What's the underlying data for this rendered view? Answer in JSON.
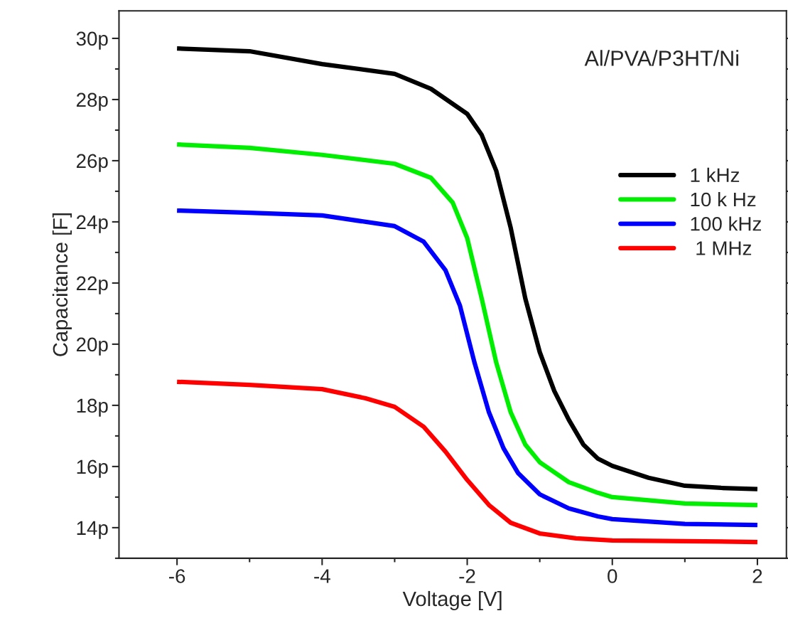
{
  "chart_data": {
    "type": "line",
    "xlabel": "Voltage [V]",
    "ylabel": "Capacitance [F]",
    "annotations": [
      "Al/PVA/P3HT/Ni"
    ],
    "xlim": [
      -6.8,
      2.4
    ],
    "ylim": [
      13,
      30.9
    ],
    "xticks": [
      -6,
      -4,
      -2,
      0,
      2
    ],
    "yticks": [
      {
        "value": 14,
        "label": "14p"
      },
      {
        "value": 16,
        "label": "16p"
      },
      {
        "value": 18,
        "label": "18p"
      },
      {
        "value": 20,
        "label": "20p"
      },
      {
        "value": 22,
        "label": "22p"
      },
      {
        "value": 24,
        "label": "24p"
      },
      {
        "value": 26,
        "label": "26p"
      },
      {
        "value": 28,
        "label": "28p"
      },
      {
        "value": 30,
        "label": "30p"
      }
    ],
    "grid": false,
    "legend": "right",
    "line_style": "solid",
    "marker": "none",
    "series": [
      {
        "name": "1 kHz",
        "color": "#000000",
        "x": [
          -6,
          -5,
          -4,
          -3,
          -2.5,
          -2,
          -1.8,
          -1.6,
          -1.4,
          -1.2,
          -1.0,
          -0.8,
          -0.6,
          -0.4,
          -0.2,
          0,
          0.5,
          1,
          1.5,
          2
        ],
        "values": [
          29.67,
          29.58,
          29.16,
          28.84,
          28.35,
          27.53,
          26.84,
          25.67,
          23.8,
          21.5,
          19.74,
          18.47,
          17.53,
          16.72,
          16.26,
          16.02,
          15.63,
          15.37,
          15.3,
          15.26
        ]
      },
      {
        "name": "10 k Hz",
        "color": "#00ee00",
        "x": [
          -6,
          -5,
          -4,
          -3,
          -2.5,
          -2.2,
          -2,
          -1.8,
          -1.6,
          -1.4,
          -1.2,
          -1.0,
          -0.6,
          -0.2,
          0,
          1,
          2
        ],
        "values": [
          26.53,
          26.42,
          26.19,
          25.9,
          25.44,
          24.63,
          23.47,
          21.49,
          19.4,
          17.77,
          16.72,
          16.14,
          15.49,
          15.14,
          15.0,
          14.79,
          14.74
        ]
      },
      {
        "name": "100 kHz",
        "color": "#0000ff",
        "x": [
          -6,
          -5,
          -4,
          -3,
          -2.6,
          -2.3,
          -2.1,
          -1.9,
          -1.7,
          -1.5,
          -1.3,
          -1.0,
          -0.6,
          -0.2,
          0,
          1,
          2
        ],
        "values": [
          24.37,
          24.3,
          24.21,
          23.86,
          23.35,
          22.42,
          21.26,
          19.4,
          17.77,
          16.6,
          15.79,
          15.09,
          14.63,
          14.37,
          14.28,
          14.12,
          14.09
        ]
      },
      {
        "name": " 1 MHz",
        "color": "#ff0000",
        "x": [
          -6,
          -5,
          -4,
          -3.4,
          -3,
          -2.6,
          -2.3,
          -2.0,
          -1.7,
          -1.4,
          -1.0,
          -0.5,
          0,
          1,
          2
        ],
        "values": [
          18.77,
          18.67,
          18.53,
          18.23,
          17.95,
          17.3,
          16.49,
          15.56,
          14.74,
          14.16,
          13.81,
          13.65,
          13.58,
          13.56,
          13.53
        ]
      }
    ]
  }
}
